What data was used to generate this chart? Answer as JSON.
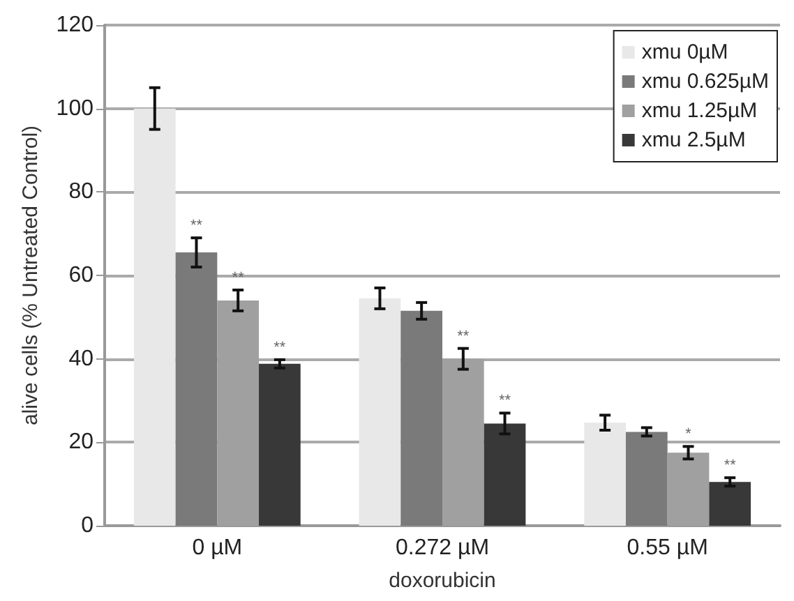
{
  "chart_data": {
    "type": "bar",
    "xlabel": "doxorubicin",
    "ylabel": "alive cells (% Untreated Control)",
    "categories": [
      "0 µM",
      "0.272 µM",
      "0.55 µM"
    ],
    "series": [
      {
        "name": "xmu 0µM",
        "color": "#e8e8e8",
        "values": [
          100,
          54.5,
          24.7
        ],
        "errors": [
          5,
          2.5,
          1.8
        ],
        "value_labels": [
          null,
          null,
          null
        ]
      },
      {
        "name": "xmu 0.625µM",
        "color": "#7a7a7a",
        "values": [
          65.5,
          51.5,
          22.5
        ],
        "errors": [
          3.5,
          2,
          1
        ],
        "value_labels": [
          "**",
          null,
          null
        ]
      },
      {
        "name": "xmu 1.25µM",
        "color": "#a0a0a0",
        "values": [
          54,
          40,
          17.5
        ],
        "errors": [
          2.5,
          2.5,
          1.5
        ],
        "value_labels": [
          "**",
          "**",
          "*"
        ]
      },
      {
        "name": "xmu 2.5µM",
        "color": "#383838",
        "values": [
          38.8,
          24.5,
          10.5
        ],
        "errors": [
          1,
          2.5,
          1
        ],
        "value_labels": [
          "**",
          "**",
          "**"
        ]
      }
    ],
    "ylim": [
      0,
      120
    ],
    "yticks": [
      0,
      20,
      40,
      60,
      80,
      100,
      120
    ],
    "grid": "y",
    "legend": "top right"
  }
}
